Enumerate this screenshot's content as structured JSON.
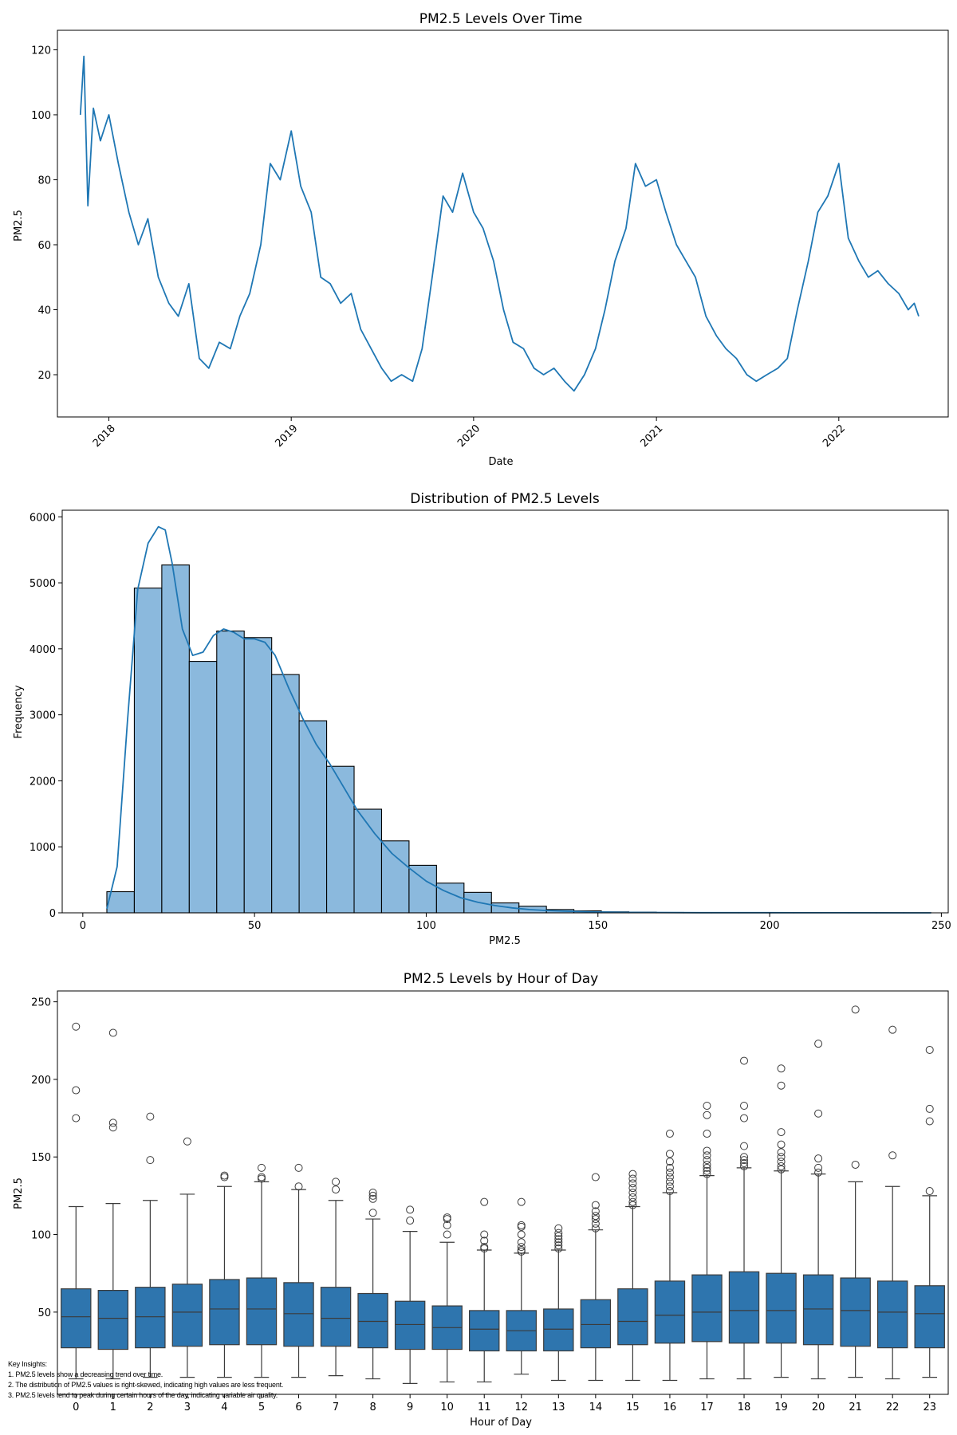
{
  "chart_data": [
    {
      "type": "line",
      "title": "PM2.5 Levels Over Time",
      "xlabel": "Date",
      "ylabel": "PM2.5",
      "xlim": [
        "2017-09-20",
        "2022-08-08"
      ],
      "ylim": [
        7,
        126
      ],
      "x_ticks": [
        "2018",
        "2019",
        "2020",
        "2021",
        "2022"
      ],
      "x_tick_dates": [
        "2018-01-01",
        "2019-01-01",
        "2020-01-01",
        "2021-01-01",
        "2022-01-01"
      ],
      "y_ticks": [
        20,
        40,
        60,
        80,
        100,
        120
      ],
      "grid": false,
      "color": "#1f77b4",
      "series": [
        {
          "x": [
            "2017-11-05",
            "2017-11-12",
            "2017-11-20",
            "2017-12-01",
            "2017-12-15",
            "2018-01-01",
            "2018-01-20",
            "2018-02-10",
            "2018-03-01",
            "2018-03-20",
            "2018-04-10",
            "2018-05-01",
            "2018-05-20",
            "2018-06-10",
            "2018-07-01",
            "2018-07-20",
            "2018-08-10",
            "2018-09-01",
            "2018-09-20",
            "2018-10-10",
            "2018-11-01",
            "2018-11-20",
            "2018-12-10",
            "2019-01-01",
            "2019-01-20",
            "2019-02-10",
            "2019-03-01",
            "2019-03-20",
            "2019-04-10",
            "2019-05-01",
            "2019-05-20",
            "2019-06-10",
            "2019-07-01",
            "2019-07-20",
            "2019-08-10",
            "2019-09-01",
            "2019-09-20",
            "2019-10-10",
            "2019-11-01",
            "2019-11-20",
            "2019-12-10",
            "2020-01-01",
            "2020-01-20",
            "2020-02-10",
            "2020-03-01",
            "2020-03-20",
            "2020-04-10",
            "2020-05-01",
            "2020-05-20",
            "2020-06-10",
            "2020-07-01",
            "2020-07-20",
            "2020-08-10",
            "2020-09-01",
            "2020-09-20",
            "2020-10-10",
            "2020-11-01",
            "2020-11-20",
            "2020-12-10",
            "2021-01-01",
            "2021-01-20",
            "2021-02-10",
            "2021-03-01",
            "2021-03-20",
            "2021-04-10",
            "2021-05-01",
            "2021-05-20",
            "2021-06-10",
            "2021-07-01",
            "2021-07-20",
            "2021-08-10",
            "2021-09-01",
            "2021-09-20",
            "2021-10-10",
            "2021-11-01",
            "2021-11-20",
            "2021-12-10",
            "2022-01-01",
            "2022-01-20",
            "2022-02-10",
            "2022-03-01",
            "2022-03-20",
            "2022-04-10",
            "2022-05-01",
            "2022-05-20",
            "2022-06-01",
            "2022-06-10"
          ],
          "y": [
            100,
            118,
            72,
            102,
            92,
            100,
            85,
            70,
            60,
            68,
            50,
            42,
            38,
            48,
            25,
            22,
            30,
            28,
            38,
            45,
            60,
            85,
            80,
            95,
            78,
            70,
            50,
            48,
            42,
            45,
            34,
            28,
            22,
            18,
            20,
            18,
            28,
            50,
            75,
            70,
            82,
            70,
            65,
            55,
            40,
            30,
            28,
            22,
            20,
            22,
            18,
            15,
            20,
            28,
            40,
            55,
            65,
            85,
            78,
            80,
            70,
            60,
            55,
            50,
            38,
            32,
            28,
            25,
            20,
            18,
            20,
            22,
            25,
            40,
            55,
            70,
            75,
            85,
            62,
            55,
            50,
            52,
            48,
            45,
            40,
            42,
            38
          ]
        }
      ]
    },
    {
      "type": "bar",
      "title": "Distribution of PM2.5 Levels",
      "xlabel": "PM2.5",
      "ylabel": "Frequency",
      "xlim": [
        -6,
        252
      ],
      "ylim": [
        0,
        6100
      ],
      "x_ticks": [
        0,
        50,
        100,
        150,
        200,
        250
      ],
      "y_ticks": [
        0,
        1000,
        2000,
        3000,
        4000,
        5000,
        6000
      ],
      "grid": false,
      "bar_color": "#8bb9dd",
      "kde_color": "#1f77b4",
      "bin_edges": [
        7,
        15,
        23,
        31,
        39,
        47,
        55,
        63,
        71,
        79,
        87,
        95,
        103,
        111,
        119,
        127,
        135,
        143,
        151,
        159,
        167,
        175,
        183,
        191,
        199,
        207,
        215,
        223,
        231,
        239,
        247
      ],
      "values": [
        320,
        4920,
        5270,
        3810,
        4270,
        4170,
        3610,
        2910,
        2220,
        1570,
        1090,
        720,
        450,
        310,
        150,
        100,
        50,
        30,
        15,
        10,
        6,
        4,
        3,
        2,
        2,
        1,
        1,
        1,
        1,
        1
      ],
      "kde": {
        "x": [
          7,
          10,
          13,
          16,
          19,
          22,
          24,
          26,
          29,
          32,
          35,
          38,
          41,
          44,
          47,
          50,
          53,
          56,
          60,
          64,
          68,
          72,
          76,
          80,
          85,
          90,
          95,
          100,
          105,
          110,
          115,
          120,
          125,
          130,
          135,
          140,
          150,
          160,
          180,
          200,
          220,
          247
        ],
        "y": [
          60,
          700,
          2900,
          4900,
          5600,
          5850,
          5800,
          5300,
          4300,
          3900,
          3950,
          4200,
          4300,
          4250,
          4150,
          4150,
          4100,
          3900,
          3400,
          2950,
          2550,
          2250,
          1900,
          1550,
          1200,
          900,
          680,
          480,
          340,
          230,
          160,
          110,
          75,
          50,
          35,
          25,
          12,
          6,
          3,
          2,
          1,
          0
        ]
      }
    },
    {
      "type": "box",
      "title": "PM2.5 Levels by Hour of Day",
      "xlabel": "Hour of Day",
      "ylabel": "PM2.5",
      "ylim": [
        -3,
        257
      ],
      "y_ticks": [
        50,
        100,
        150,
        200,
        250
      ],
      "grid": false,
      "box_color": "#2e75ae",
      "categories": [
        "0",
        "1",
        "2",
        "3",
        "4",
        "5",
        "6",
        "7",
        "8",
        "9",
        "10",
        "11",
        "12",
        "13",
        "14",
        "15",
        "16",
        "17",
        "18",
        "19",
        "20",
        "21",
        "22",
        "23"
      ],
      "boxes": [
        {
          "whislo": 7,
          "q1": 27,
          "med": 47,
          "q3": 65,
          "whishi": 118,
          "fliers": [
            175,
            193,
            234
          ]
        },
        {
          "whislo": 7,
          "q1": 26,
          "med": 46,
          "q3": 64,
          "whishi": 120,
          "fliers": [
            169,
            172,
            230
          ]
        },
        {
          "whislo": 8,
          "q1": 27,
          "med": 47,
          "q3": 66,
          "whishi": 122,
          "fliers": [
            148,
            176
          ]
        },
        {
          "whislo": 8,
          "q1": 28,
          "med": 50,
          "q3": 68,
          "whishi": 126,
          "fliers": [
            160
          ]
        },
        {
          "whislo": 8,
          "q1": 29,
          "med": 52,
          "q3": 71,
          "whishi": 131,
          "fliers": [
            137,
            138
          ]
        },
        {
          "whislo": 8,
          "q1": 29,
          "med": 52,
          "q3": 72,
          "whishi": 134,
          "fliers": [
            136,
            137,
            143
          ]
        },
        {
          "whislo": 8,
          "q1": 28,
          "med": 49,
          "q3": 69,
          "whishi": 129,
          "fliers": [
            131,
            143
          ]
        },
        {
          "whislo": 9,
          "q1": 28,
          "med": 46,
          "q3": 66,
          "whishi": 122,
          "fliers": [
            129,
            134
          ]
        },
        {
          "whislo": 7,
          "q1": 27,
          "med": 44,
          "q3": 62,
          "whishi": 110,
          "fliers": [
            114,
            123,
            125,
            127
          ]
        },
        {
          "whislo": 4,
          "q1": 26,
          "med": 42,
          "q3": 57,
          "whishi": 102,
          "fliers": [
            109,
            116
          ]
        },
        {
          "whislo": 5,
          "q1": 26,
          "med": 40,
          "q3": 54,
          "whishi": 95,
          "fliers": [
            100,
            106,
            110,
            111
          ]
        },
        {
          "whislo": 5,
          "q1": 25,
          "med": 39,
          "q3": 51,
          "whishi": 90,
          "fliers": [
            91,
            92,
            96,
            100,
            121
          ]
        },
        {
          "whislo": 10,
          "q1": 25,
          "med": 38,
          "q3": 51,
          "whishi": 88,
          "fliers": [
            89,
            90,
            92,
            95,
            100,
            105,
            106,
            121
          ]
        },
        {
          "whislo": 6,
          "q1": 25,
          "med": 39,
          "q3": 52,
          "whishi": 90,
          "fliers": [
            91,
            93,
            95,
            97,
            99,
            101,
            104
          ]
        },
        {
          "whislo": 6,
          "q1": 27,
          "med": 42,
          "q3": 58,
          "whishi": 103,
          "fliers": [
            104,
            107,
            110,
            112,
            115,
            119,
            137
          ]
        },
        {
          "whislo": 6,
          "q1": 29,
          "med": 44,
          "q3": 65,
          "whishi": 118,
          "fliers": [
            119,
            121,
            124,
            127,
            130,
            133,
            136,
            139
          ]
        },
        {
          "whislo": 6,
          "q1": 30,
          "med": 48,
          "q3": 70,
          "whishi": 127,
          "fliers": [
            128,
            131,
            134,
            137,
            140,
            143,
            147,
            152,
            165
          ]
        },
        {
          "whislo": 7,
          "q1": 31,
          "med": 50,
          "q3": 74,
          "whishi": 138,
          "fliers": [
            139,
            141,
            143,
            145,
            148,
            151,
            154,
            165,
            177,
            183
          ]
        },
        {
          "whislo": 7,
          "q1": 30,
          "med": 51,
          "q3": 76,
          "whishi": 143,
          "fliers": [
            144,
            146,
            148,
            150,
            157,
            175,
            183,
            212
          ]
        },
        {
          "whislo": 8,
          "q1": 30,
          "med": 51,
          "q3": 75,
          "whishi": 141,
          "fliers": [
            142,
            144,
            147,
            150,
            153,
            158,
            166,
            196,
            207
          ]
        },
        {
          "whislo": 7,
          "q1": 29,
          "med": 52,
          "q3": 74,
          "whishi": 139,
          "fliers": [
            140,
            143,
            149,
            178,
            223
          ]
        },
        {
          "whislo": 8,
          "q1": 28,
          "med": 51,
          "q3": 72,
          "whishi": 134,
          "fliers": [
            145,
            245
          ]
        },
        {
          "whislo": 7,
          "q1": 27,
          "med": 50,
          "q3": 70,
          "whishi": 131,
          "fliers": [
            151,
            232
          ]
        },
        {
          "whislo": 8,
          "q1": 27,
          "med": 49,
          "q3": 67,
          "whishi": 125,
          "fliers": [
            128,
            173,
            181,
            219
          ]
        }
      ]
    }
  ],
  "insights": {
    "heading": "Key Insights:",
    "lines": [
      "1. PM2.5 levels show a decreasing trend over time.",
      "2. The distribution of PM2.5 values is right-skewed, indicating high values are less frequent.",
      "3. PM2.5 levels tend to peak during certain hours of the day, indicating variable air quality."
    ]
  }
}
